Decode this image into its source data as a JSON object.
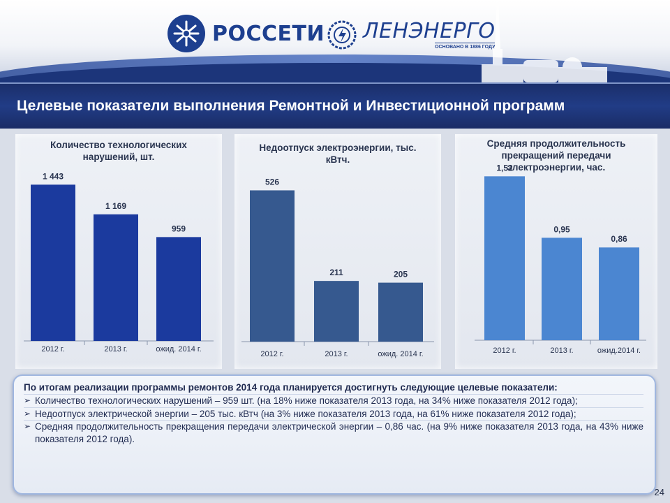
{
  "header": {
    "logo_rosseti": "РОССЕТИ",
    "logo_lenenergo": "ЛЕНЭНЕРГО",
    "lenenergo_tagline": "ОСНОВАНО В 1886 ГОДУ"
  },
  "title": "Целевые показатели выполнения Ремонтной  и Инвестиционной программ",
  "colors": {
    "chart1_bar": "#1b3a9e",
    "chart2_bar": "#36598f",
    "chart3_bar": "#4b86d1",
    "title_bg": "#213c86"
  },
  "chart_data": [
    {
      "type": "bar",
      "title": "Количество технологических нарушений, шт.",
      "categories": [
        "2012 г.",
        "2013 г.",
        "ожид. 2014 г."
      ],
      "values": [
        1443,
        1169,
        959
      ],
      "value_labels": [
        "1 443",
        "1 169",
        "959"
      ],
      "ylim": [
        0,
        1600
      ],
      "grid": false
    },
    {
      "type": "bar",
      "title": "Недоотпуск электроэнергии, тыс. кВтч.",
      "categories": [
        "2012 г.",
        "2013 г.",
        "ожид. 2014 г."
      ],
      "values": [
        526,
        211,
        205
      ],
      "value_labels": [
        "526",
        "211",
        "205"
      ],
      "ylim": [
        0,
        600
      ],
      "grid": false
    },
    {
      "type": "bar",
      "title": "Средняя продолжительность прекращений передачи электроэнергии, час.",
      "categories": [
        "2012 г.",
        "2013 г.",
        "ожид.2014 г."
      ],
      "values": [
        1.52,
        0.95,
        0.86
      ],
      "value_labels": [
        "1,52",
        "0,95",
        "0,86"
      ],
      "ylim": [
        0,
        1.6
      ],
      "grid": false
    }
  ],
  "summary": {
    "lead": "По итогам реализации программы ремонтов 2014 года планируется достигнуть следующие целевые показатели:",
    "items": [
      "Количество технологических нарушений – 959 шт. (на 18% ниже показателя 2013 года, на 34% ниже показателя 2012 года);",
      "Недоотпуск электрической энергии – 205 тыс. кВтч (на 3% ниже показателя 2013 года, на 61% ниже показателя 2012 года);",
      "Средняя продолжительность прекращения передачи электрической энергии – 0,86 час. (на 9% ниже показателя 2013 года, на 43% ниже показателя 2012 года)."
    ]
  },
  "page_number": "24"
}
